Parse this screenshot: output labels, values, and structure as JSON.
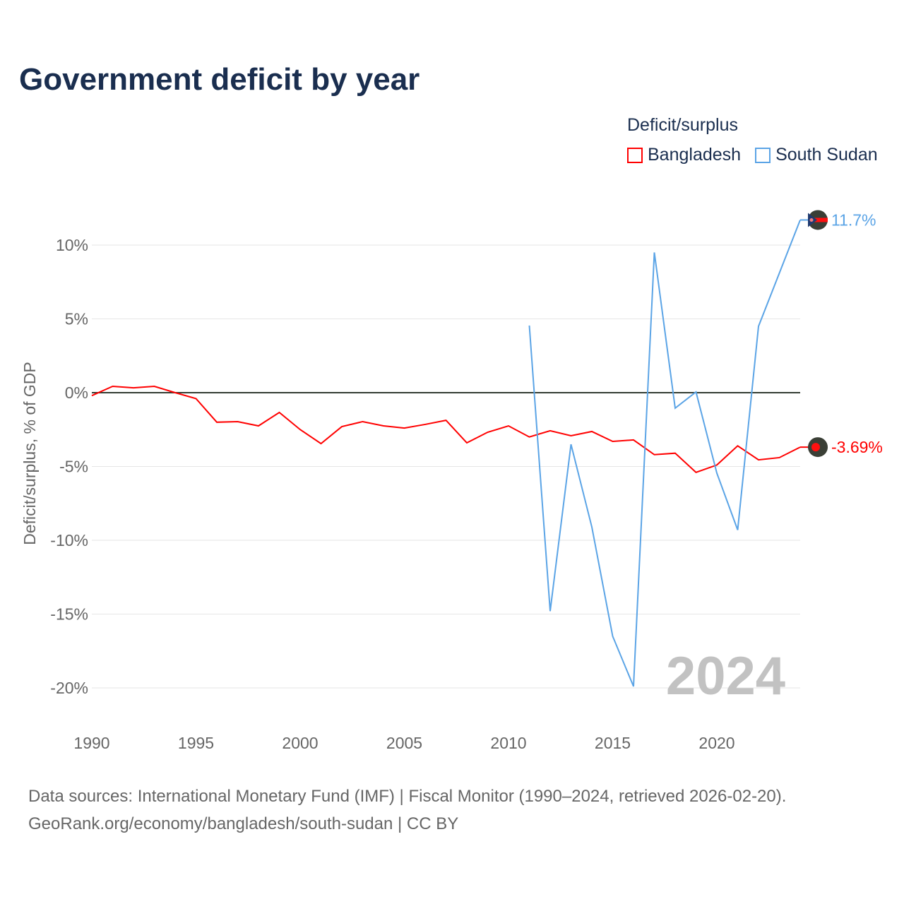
{
  "chart_data": {
    "type": "line",
    "title": "Government deficit by year",
    "xlabel": "",
    "ylabel": "Deficit/surplus, % of GDP",
    "xlim": [
      1990,
      2024
    ],
    "ylim": [
      -20,
      10
    ],
    "x_ticks": [
      "1990",
      "1995",
      "2000",
      "2005",
      "2010",
      "2015",
      "2020"
    ],
    "y_ticks": [
      {
        "v": 10,
        "label": "10%"
      },
      {
        "v": 5,
        "label": "5%"
      },
      {
        "v": 0,
        "label": "0%"
      },
      {
        "v": -5,
        "label": "-5%"
      },
      {
        "v": -10,
        "label": "-10%"
      },
      {
        "v": -15,
        "label": "-15%"
      },
      {
        "v": -20,
        "label": "-20%"
      }
    ],
    "grid": true,
    "legend_title": "Deficit/surplus",
    "legend_placement": "top-right",
    "year_watermark": "2024",
    "series": [
      {
        "name": "Bangladesh",
        "color": "#ff0000",
        "end_label": "-3.69%",
        "x": [
          1990,
          1991,
          1992,
          1993,
          1994,
          1995,
          1996,
          1997,
          1998,
          1999,
          2000,
          2001,
          2002,
          2003,
          2004,
          2005,
          2006,
          2007,
          2008,
          2009,
          2010,
          2011,
          2012,
          2013,
          2014,
          2015,
          2016,
          2017,
          2018,
          2019,
          2020,
          2021,
          2022,
          2023,
          2024
        ],
        "values": [
          -0.2,
          0.43,
          0.33,
          0.43,
          0,
          -0.4,
          -2.0,
          -1.96,
          -2.25,
          -1.34,
          -2.5,
          -3.45,
          -2.3,
          -1.96,
          -2.25,
          -2.4,
          -2.15,
          -1.87,
          -3.4,
          -2.68,
          -2.25,
          -3.0,
          -2.58,
          -2.92,
          -2.63,
          -3.3,
          -3.2,
          -4.2,
          -4.1,
          -5.4,
          -4.9,
          -3.6,
          -4.55,
          -4.4,
          -3.69
        ]
      },
      {
        "name": "South Sudan",
        "color": "#5ba4e6",
        "end_label": "11.7%",
        "x": [
          2011,
          2012,
          2013,
          2014,
          2015,
          2016,
          2017,
          2018,
          2019,
          2020,
          2021,
          2022,
          2023,
          2024
        ],
        "values": [
          4.55,
          -14.8,
          -3.5,
          -9.1,
          -16.5,
          -19.9,
          9.5,
          -1.05,
          0.05,
          -5.45,
          -9.3,
          4.5,
          8.1,
          11.7
        ]
      }
    ]
  },
  "footer": {
    "line1": "Data sources: International Monetary Fund (IMF) | Fiscal Monitor (1990–2024, retrieved 2026-02-20).",
    "line2": "GeoRank.org/economy/bangladesh/south-sudan | CC BY"
  }
}
